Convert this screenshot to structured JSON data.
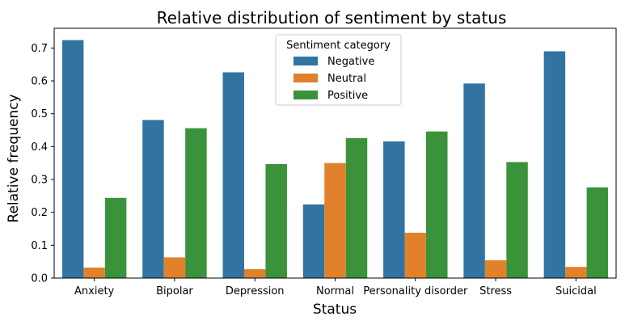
{
  "chart_data": {
    "type": "bar",
    "title": "Relative distribution of sentiment by status",
    "xlabel": "Status",
    "ylabel": "Relative frequency",
    "categories": [
      "Anxiety",
      "Bipolar",
      "Depression",
      "Normal",
      "Personality disorder",
      "Stress",
      "Suicidal"
    ],
    "series": [
      {
        "name": "Negative",
        "color": "#3274a1",
        "values": [
          0.724,
          0.481,
          0.626,
          0.224,
          0.416,
          0.592,
          0.69
        ]
      },
      {
        "name": "Neutral",
        "color": "#e1812c",
        "values": [
          0.032,
          0.063,
          0.027,
          0.35,
          0.138,
          0.054,
          0.034
        ]
      },
      {
        "name": "Positive",
        "color": "#3a923a",
        "values": [
          0.244,
          0.456,
          0.347,
          0.426,
          0.446,
          0.353,
          0.276
        ]
      }
    ],
    "ylim": [
      0,
      0.76
    ],
    "yticks": [
      0.0,
      0.1,
      0.2,
      0.3,
      0.4,
      0.5,
      0.6,
      0.7
    ],
    "ytick_labels": [
      "0.0",
      "0.1",
      "0.2",
      "0.3",
      "0.4",
      "0.5",
      "0.6",
      "0.7"
    ],
    "legend": {
      "title": "Sentiment category",
      "position": "top-center"
    },
    "grid": false
  }
}
